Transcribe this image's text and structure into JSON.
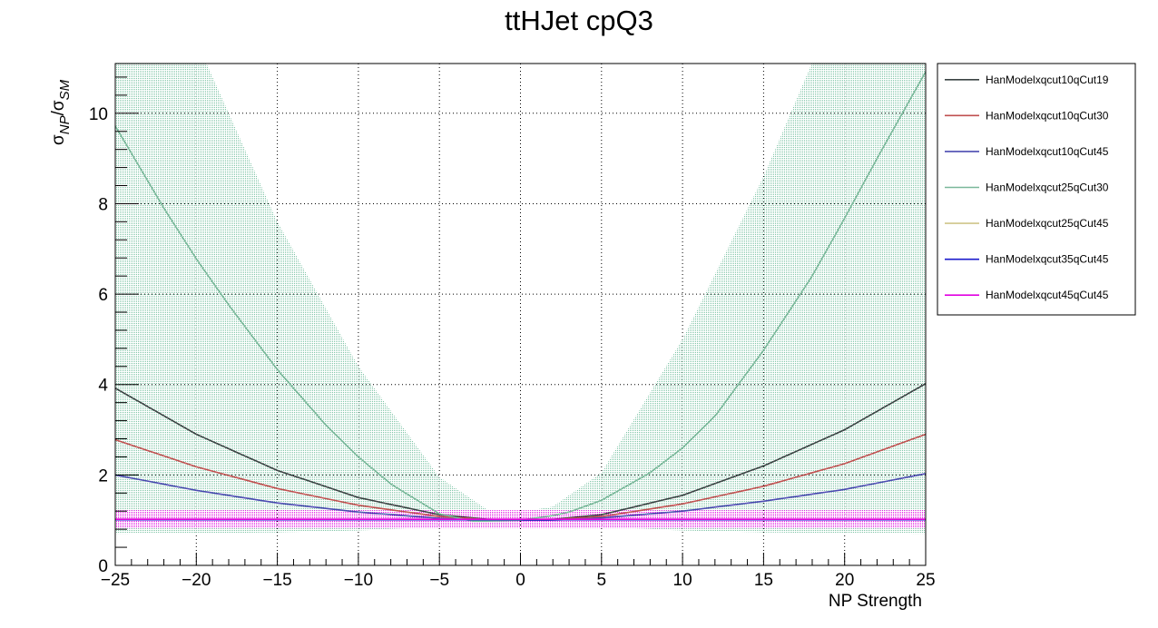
{
  "chart_data": {
    "type": "line",
    "title": "ttHJet cpQ3",
    "xlabel": "NP Strength",
    "ylabel": "σ_NP/σ_SM",
    "ylabel_main": "σ",
    "ylabel_num_sub": "NP",
    "ylabel_slash": "/",
    "ylabel_den_sub": "SM",
    "xlim": [
      -25,
      25
    ],
    "ylim": [
      0,
      11.1
    ],
    "xticks": [
      -25,
      -20,
      -15,
      -10,
      -5,
      0,
      5,
      10,
      15,
      20,
      25
    ],
    "xtick_labels": [
      "−25",
      "−20",
      "−15",
      "−10",
      "−5",
      "0",
      "5",
      "10",
      "15",
      "20",
      "25"
    ],
    "yticks": [
      0,
      2,
      4,
      6,
      8,
      10
    ],
    "ytick_labels": [
      "0",
      "2",
      "4",
      "6",
      "8",
      "10"
    ],
    "grid": true,
    "legend_position": "right, outside plot",
    "uncertainty_band": {
      "series": "HanModelxqcut25qCut30",
      "color": "#7ec4a6",
      "description": "shaded error band",
      "x": [
        -25,
        -20,
        -15,
        -10,
        -5,
        -2,
        0,
        2,
        5,
        10,
        15,
        20,
        25
      ],
      "lower": [
        0.7,
        0.71,
        0.73,
        0.77,
        0.86,
        0.95,
        0.96,
        0.95,
        0.86,
        0.77,
        0.73,
        0.71,
        0.7
      ],
      "upper": [
        15.5,
        11.6,
        7.6,
        4.4,
        1.95,
        1.22,
        1.18,
        1.3,
        2.05,
        5.0,
        8.6,
        12.8,
        17.4
      ]
    },
    "series": [
      {
        "name": "HanModelxqcut10qCut19",
        "color": "#3b4343",
        "x": [
          -25,
          -20,
          -15,
          -10,
          -5,
          -2,
          0,
          2,
          5,
          10,
          15,
          20,
          25
        ],
        "y": [
          3.92,
          2.9,
          2.1,
          1.5,
          1.12,
          1.02,
          1.0,
          1.02,
          1.12,
          1.55,
          2.2,
          3.0,
          4.02
        ]
      },
      {
        "name": "HanModelxqcut10qCut30",
        "color": "#c05050",
        "x": [
          -25,
          -20,
          -15,
          -10,
          -5,
          -2,
          0,
          2,
          5,
          10,
          15,
          20,
          25
        ],
        "y": [
          2.78,
          2.18,
          1.7,
          1.33,
          1.08,
          1.01,
          1.0,
          1.01,
          1.08,
          1.36,
          1.75,
          2.25,
          2.9
        ]
      },
      {
        "name": "HanModelxqcut10qCut45",
        "color": "#4a4ab0",
        "x": [
          -25,
          -20,
          -15,
          -10,
          -5,
          -2,
          0,
          2,
          5,
          10,
          15,
          20,
          25
        ],
        "y": [
          2.0,
          1.66,
          1.38,
          1.18,
          1.04,
          1.0,
          1.0,
          1.0,
          1.05,
          1.2,
          1.42,
          1.68,
          2.03
        ]
      },
      {
        "name": "HanModelxqcut25qCut30",
        "color": "#7ab89a",
        "x": [
          -25,
          -22,
          -20,
          -18,
          -15,
          -12,
          -10,
          -8,
          -5,
          -3,
          -2,
          0,
          2,
          3,
          5,
          8,
          10,
          12,
          15,
          18,
          20,
          22,
          25
        ],
        "y": [
          9.72,
          7.9,
          6.78,
          5.76,
          4.33,
          3.1,
          2.4,
          1.8,
          1.14,
          0.98,
          0.98,
          1.0,
          1.1,
          1.18,
          1.44,
          2.05,
          2.6,
          3.3,
          4.76,
          6.4,
          7.68,
          9.0,
          10.92
        ]
      },
      {
        "name": "HanModelxqcut25qCut45",
        "color": "#cfc58a",
        "x": [
          -25,
          25
        ],
        "y": [
          1.02,
          1.02
        ]
      },
      {
        "name": "HanModelxqcut35qCut45",
        "color": "#1a1acc",
        "x": [
          -25,
          25
        ],
        "y": [
          1.01,
          1.01
        ]
      },
      {
        "name": "HanModelxqcut45qCut45",
        "color": "#e000e0",
        "x": [
          -25,
          25
        ],
        "y": [
          1.02,
          1.02
        ]
      }
    ],
    "flat_band": {
      "color": "#e000e0",
      "lower": 0.82,
      "upper": 1.22
    }
  }
}
